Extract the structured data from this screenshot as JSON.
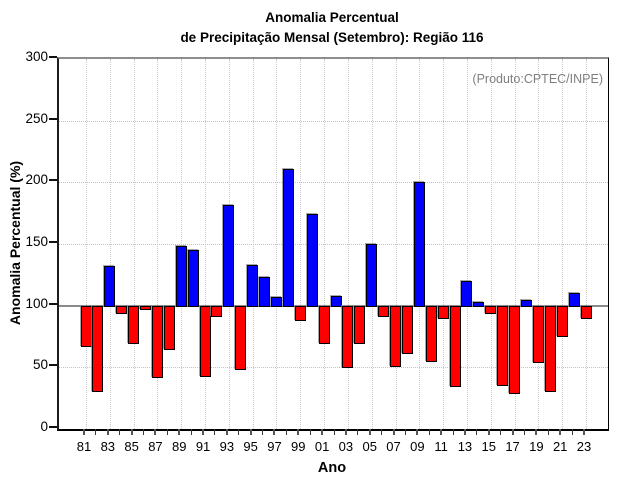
{
  "title": {
    "line1": "Anomalia Percentual",
    "line2": "de Precipitação Mensal (Setembro): Região 116"
  },
  "annotation": "(Produto:CPTEC/INPE)",
  "axes": {
    "y_label": "Anomalia Percentual (%)",
    "x_label": "Ano"
  },
  "colors": {
    "positive_bar": "#0000ff",
    "negative_bar": "#ff0000",
    "baseline": "#8a8a8a",
    "grid": "#c2c2c2",
    "annotation_text": "#7f7f7f"
  },
  "chart_data": {
    "type": "bar",
    "title": "Anomalia Percentual de Precipitação Mensal (Setembro): Região 116",
    "xlabel": "Ano",
    "ylabel": "Anomalia Percentual (%)",
    "ylim": [
      0,
      300
    ],
    "y_ticks": [
      0,
      50,
      100,
      150,
      200,
      250,
      300
    ],
    "baseline": 100,
    "hgrid_values": [
      50,
      150,
      200,
      250
    ],
    "grid": true,
    "legend_position": "none",
    "x_tick_labels": [
      "81",
      "83",
      "85",
      "87",
      "89",
      "91",
      "93",
      "95",
      "97",
      "99",
      "01",
      "03",
      "05",
      "07",
      "09",
      "11",
      "13",
      "15",
      "17",
      "19",
      "21",
      "23"
    ],
    "years": [
      1981,
      1982,
      1983,
      1984,
      1985,
      1986,
      1987,
      1988,
      1989,
      1990,
      1991,
      1992,
      1993,
      1994,
      1995,
      1996,
      1997,
      1998,
      1999,
      2000,
      2001,
      2002,
      2003,
      2004,
      2005,
      2006,
      2007,
      2008,
      2009,
      2010,
      2011,
      2012,
      2013,
      2014,
      2015,
      2016,
      2017,
      2018,
      2019,
      2020,
      2021,
      2022,
      2023
    ],
    "values": [
      67,
      31,
      132,
      94,
      70,
      97,
      42,
      65,
      148,
      145,
      43,
      92,
      182,
      49,
      133,
      123,
      107,
      211,
      88,
      174,
      70,
      108,
      50,
      70,
      150,
      92,
      51,
      62,
      200,
      55,
      90,
      35,
      120,
      103,
      94,
      36,
      29,
      105,
      54,
      31,
      75,
      110,
      90
    ]
  }
}
